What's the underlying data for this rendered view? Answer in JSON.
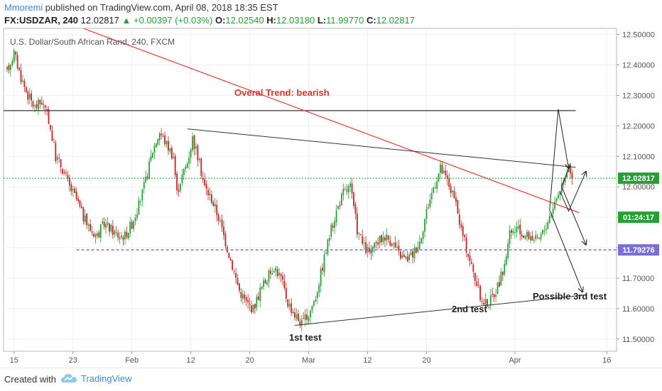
{
  "header": {
    "author": "Mmoremi",
    "published": "published on TradingView.com, April 08, 2018 18:35 EST",
    "symbol": "FX:USDZAR, 240",
    "last": "12.02817",
    "change": "+0.00397 (+0.03%)",
    "o_label": "O:",
    "o": "12.02540",
    "h_label": "H:",
    "h": "12.03180",
    "l_label": "L:",
    "l": "11.99770",
    "c_label": "C:",
    "c": "12.02817"
  },
  "footer": {
    "created_with": "Created with",
    "brand": "TradingView"
  },
  "colors": {
    "up": "#26a035",
    "down": "#c32323",
    "accent": "#3d8ad6",
    "trend": "#e8372f",
    "support": "#7b6fd6",
    "price_line": "#26a035"
  },
  "chart_data": {
    "type": "candlestick",
    "title": "U.S. Dollar/South African Rand, 240, FXCM",
    "ylim": [
      11.46,
      12.52
    ],
    "y_ticks": [
      "12.50000",
      "12.40000",
      "12.30000",
      "12.20000",
      "12.10000",
      "12.00000",
      "11.90000",
      "11.80000",
      "11.70000",
      "11.60000",
      "11.50000"
    ],
    "x_ticks": [
      "15",
      "23",
      "Feb",
      "12",
      "20",
      "Mar",
      "12",
      "20",
      "Apr",
      "16"
    ],
    "price_label": "12.02817",
    "countdown_label": "01:24:17",
    "support_level": 11.79276,
    "support_label": "11.79276",
    "resistance_level": 12.25,
    "annotations": [
      "Overal Trend: bearish",
      "1st test",
      "2nd test",
      "Possible 3rd test"
    ],
    "path": [
      [
        0,
        12.38
      ],
      [
        4,
        12.44
      ],
      [
        8,
        12.36
      ],
      [
        12,
        12.3
      ],
      [
        16,
        12.26
      ],
      [
        20,
        12.28
      ],
      [
        24,
        12.22
      ],
      [
        28,
        12.1
      ],
      [
        32,
        12.06
      ],
      [
        36,
        12.0
      ],
      [
        40,
        11.96
      ],
      [
        44,
        11.9
      ],
      [
        48,
        11.86
      ],
      [
        52,
        11.84
      ],
      [
        56,
        11.88
      ],
      [
        60,
        11.86
      ],
      [
        64,
        11.84
      ],
      [
        68,
        11.84
      ],
      [
        72,
        11.88
      ],
      [
        76,
        11.94
      ],
      [
        80,
        12.02
      ],
      [
        84,
        12.12
      ],
      [
        88,
        12.18
      ],
      [
        90,
        12.16
      ],
      [
        94,
        12.12
      ],
      [
        96,
        12.1
      ],
      [
        98,
        11.98
      ],
      [
        100,
        12.02
      ],
      [
        104,
        12.08
      ],
      [
        107,
        12.16
      ],
      [
        110,
        12.1
      ],
      [
        114,
        12.0
      ],
      [
        118,
        11.96
      ],
      [
        122,
        11.9
      ],
      [
        126,
        11.82
      ],
      [
        130,
        11.74
      ],
      [
        134,
        11.66
      ],
      [
        138,
        11.62
      ],
      [
        142,
        11.6
      ],
      [
        146,
        11.66
      ],
      [
        150,
        11.7
      ],
      [
        154,
        11.74
      ],
      [
        158,
        11.7
      ],
      [
        162,
        11.62
      ],
      [
        166,
        11.58
      ],
      [
        170,
        11.55
      ],
      [
        174,
        11.58
      ],
      [
        178,
        11.64
      ],
      [
        182,
        11.74
      ],
      [
        186,
        11.84
      ],
      [
        190,
        11.92
      ],
      [
        194,
        11.98
      ],
      [
        198,
        12.0
      ],
      [
        202,
        11.86
      ],
      [
        206,
        11.8
      ],
      [
        210,
        11.78
      ],
      [
        214,
        11.82
      ],
      [
        218,
        11.84
      ],
      [
        222,
        11.82
      ],
      [
        226,
        11.78
      ],
      [
        230,
        11.76
      ],
      [
        234,
        11.78
      ],
      [
        238,
        11.82
      ],
      [
        242,
        11.92
      ],
      [
        246,
        12.0
      ],
      [
        250,
        12.06
      ],
      [
        254,
        12.02
      ],
      [
        258,
        11.96
      ],
      [
        262,
        11.86
      ],
      [
        266,
        11.78
      ],
      [
        270,
        11.7
      ],
      [
        274,
        11.62
      ],
      [
        278,
        11.62
      ],
      [
        282,
        11.66
      ],
      [
        286,
        11.72
      ],
      [
        290,
        11.84
      ],
      [
        294,
        11.86
      ],
      [
        298,
        11.84
      ],
      [
        302,
        11.84
      ],
      [
        306,
        11.82
      ],
      [
        310,
        11.86
      ],
      [
        314,
        11.92
      ],
      [
        318,
        11.98
      ],
      [
        322,
        12.04
      ],
      [
        324,
        12.08
      ],
      [
        326,
        12.03
      ]
    ]
  }
}
